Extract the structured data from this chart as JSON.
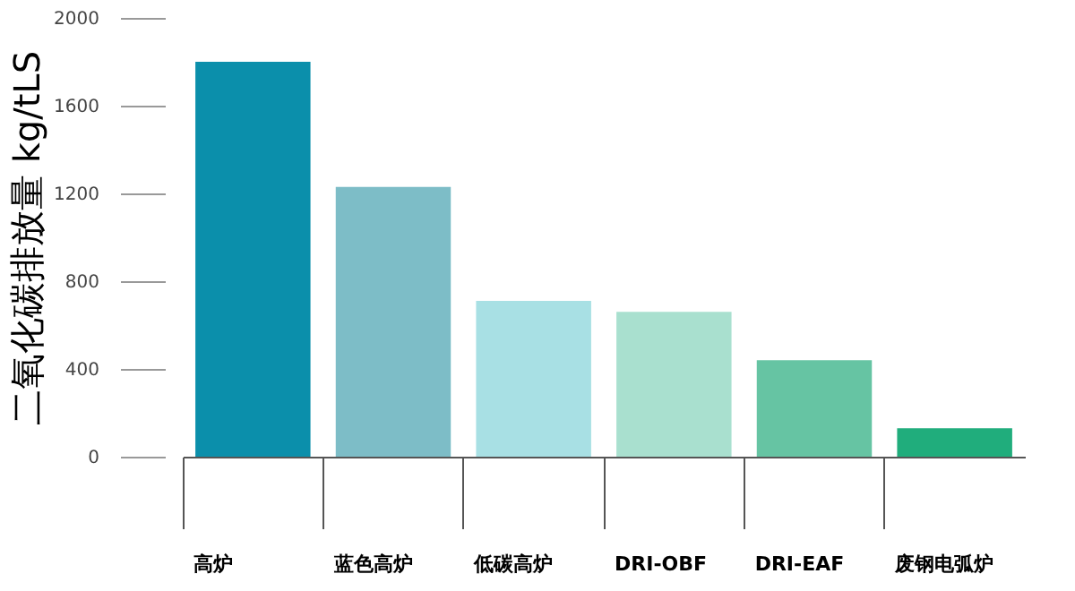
{
  "chart_data": {
    "type": "bar",
    "ylabel": "二氧化碳排放量 kg/tLS",
    "categories": [
      "高炉",
      "蓝色高炉",
      "低碳高炉",
      "DRI-OBF",
      "DRI-EAF",
      "废钢电弧炉"
    ],
    "values": [
      1800,
      1230,
      710,
      660,
      440,
      130
    ],
    "colors": [
      "#0b8fab",
      "#7dbdc7",
      "#a8e0e4",
      "#a9e0cf",
      "#66c4a3",
      "#20ad7c"
    ],
    "ylim": [
      0,
      2000
    ],
    "yticks": [
      0,
      400,
      800,
      1200,
      1600,
      2000
    ],
    "grid": false
  }
}
